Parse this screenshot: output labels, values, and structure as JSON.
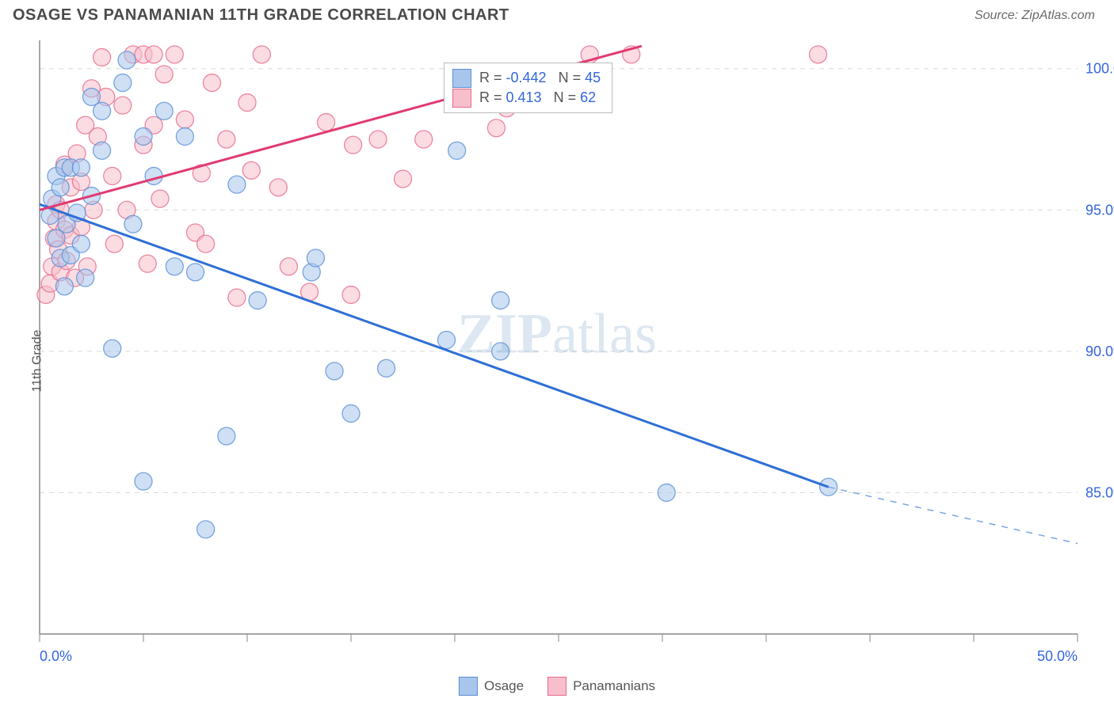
{
  "title": "OSAGE VS PANAMANIAN 11TH GRADE CORRELATION CHART",
  "source": "Source: ZipAtlas.com",
  "ylabel": "11th Grade",
  "watermark_prefix": "ZIP",
  "watermark_suffix": "atlas",
  "chart": {
    "type": "scatter",
    "xlim": [
      0,
      50
    ],
    "ylim": [
      80,
      101
    ],
    "x_ticks": [
      0,
      5,
      10,
      15,
      20,
      25,
      30,
      35,
      40,
      45,
      50
    ],
    "x_tick_labels": {
      "0": "0.0%",
      "50": "50.0%"
    },
    "y_grid": [
      85,
      90,
      95,
      100
    ],
    "y_tick_labels": {
      "85": "85.0%",
      "90": "90.0%",
      "95": "95.0%",
      "100": "100.0%"
    },
    "background_color": "#ffffff",
    "grid_color": "#d8d8d8",
    "axis_color": "#888888",
    "tick_label_color": "#3366dd",
    "tick_label_fontsize": 18,
    "marker_radius": 11,
    "marker_opacity": 0.55,
    "series": [
      {
        "name": "Osage",
        "color_fill": "#a8c6ec",
        "color_stroke": "#5a8ed6",
        "trend": {
          "x1": 0,
          "y1": 95.2,
          "x2": 38,
          "y2": 85.2,
          "color": "#2f6fd6",
          "width": 3
        },
        "trend_dash": {
          "x1": 38,
          "y1": 85.2,
          "x2": 50,
          "y2": 83.2,
          "color": "#7aa5e0",
          "width": 1.5
        },
        "R_label": "-0.442",
        "N_label": "45",
        "points": [
          [
            0.5,
            94.8
          ],
          [
            0.6,
            95.4
          ],
          [
            0.8,
            96.2
          ],
          [
            0.8,
            94.0
          ],
          [
            1.0,
            95.8
          ],
          [
            1.0,
            93.3
          ],
          [
            1.2,
            96.5
          ],
          [
            1.2,
            92.3
          ],
          [
            1.3,
            94.5
          ],
          [
            1.5,
            93.4
          ],
          [
            1.5,
            96.5
          ],
          [
            1.8,
            94.9
          ],
          [
            2.0,
            96.5
          ],
          [
            2.0,
            93.8
          ],
          [
            2.2,
            92.6
          ],
          [
            2.5,
            95.5
          ],
          [
            2.5,
            99.0
          ],
          [
            3.0,
            98.5
          ],
          [
            3.0,
            97.1
          ],
          [
            3.5,
            90.1
          ],
          [
            4.0,
            99.5
          ],
          [
            4.5,
            94.5
          ],
          [
            5.0,
            85.4
          ],
          [
            5.0,
            97.6
          ],
          [
            5.5,
            96.2
          ],
          [
            6.0,
            98.5
          ],
          [
            6.5,
            93.0
          ],
          [
            7.0,
            97.6
          ],
          [
            7.5,
            92.8
          ],
          [
            8.0,
            83.7
          ],
          [
            9.0,
            87.0
          ],
          [
            9.5,
            95.9
          ],
          [
            10.5,
            91.8
          ],
          [
            13.1,
            92.8
          ],
          [
            13.3,
            93.3
          ],
          [
            14.2,
            89.3
          ],
          [
            15.0,
            87.8
          ],
          [
            16.7,
            89.4
          ],
          [
            19.6,
            90.4
          ],
          [
            20.1,
            97.1
          ],
          [
            22.2,
            90.0
          ],
          [
            22.2,
            91.8
          ],
          [
            30.2,
            85.0
          ],
          [
            38.0,
            85.2
          ],
          [
            4.2,
            100.3
          ]
        ]
      },
      {
        "name": "Panamanians",
        "color_fill": "#f6bfcb",
        "color_stroke": "#e76a8c",
        "trend": {
          "x1": 0,
          "y1": 95.0,
          "x2": 29,
          "y2": 100.8,
          "color": "#e13a72",
          "width": 3
        },
        "R_label": "0.413",
        "N_label": "62",
        "points": [
          [
            0.3,
            92.0
          ],
          [
            0.5,
            92.4
          ],
          [
            0.6,
            93.0
          ],
          [
            0.7,
            94.0
          ],
          [
            0.8,
            94.6
          ],
          [
            0.8,
            95.2
          ],
          [
            0.9,
            93.6
          ],
          [
            1.0,
            92.8
          ],
          [
            1.0,
            95.0
          ],
          [
            1.2,
            94.3
          ],
          [
            1.2,
            96.6
          ],
          [
            1.3,
            93.2
          ],
          [
            1.5,
            94.1
          ],
          [
            1.5,
            95.8
          ],
          [
            1.7,
            92.6
          ],
          [
            1.8,
            97.0
          ],
          [
            2.0,
            96.0
          ],
          [
            2.0,
            94.4
          ],
          [
            2.2,
            98.0
          ],
          [
            2.3,
            93.0
          ],
          [
            2.5,
            99.3
          ],
          [
            2.6,
            95.0
          ],
          [
            2.8,
            97.6
          ],
          [
            3.0,
            100.4
          ],
          [
            3.2,
            99.0
          ],
          [
            3.5,
            96.2
          ],
          [
            3.6,
            93.8
          ],
          [
            4.0,
            98.7
          ],
          [
            4.2,
            95.0
          ],
          [
            4.5,
            100.5
          ],
          [
            5.0,
            97.3
          ],
          [
            5.0,
            100.5
          ],
          [
            5.2,
            93.1
          ],
          [
            5.5,
            98.0
          ],
          [
            5.8,
            95.4
          ],
          [
            6.0,
            99.8
          ],
          [
            6.5,
            100.5
          ],
          [
            7.0,
            98.2
          ],
          [
            7.5,
            94.2
          ],
          [
            7.8,
            96.3
          ],
          [
            8.0,
            93.8
          ],
          [
            8.3,
            99.5
          ],
          [
            9.0,
            97.5
          ],
          [
            9.5,
            91.9
          ],
          [
            10.0,
            98.8
          ],
          [
            10.2,
            96.4
          ],
          [
            10.7,
            100.5
          ],
          [
            11.5,
            95.8
          ],
          [
            12.0,
            93.0
          ],
          [
            13.0,
            92.1
          ],
          [
            13.8,
            98.1
          ],
          [
            15.0,
            92.0
          ],
          [
            15.1,
            97.3
          ],
          [
            16.3,
            97.5
          ],
          [
            17.5,
            96.1
          ],
          [
            18.5,
            97.5
          ],
          [
            22.0,
            97.9
          ],
          [
            22.5,
            98.6
          ],
          [
            26.5,
            100.5
          ],
          [
            28.5,
            100.5
          ],
          [
            37.5,
            100.5
          ],
          [
            5.5,
            100.5
          ]
        ]
      }
    ],
    "bottom_legend": [
      {
        "label": "Osage",
        "fill": "#a8c6ec",
        "stroke": "#5a8ed6"
      },
      {
        "label": "Panamanians",
        "fill": "#f6bfcb",
        "stroke": "#e76a8c"
      }
    ]
  }
}
